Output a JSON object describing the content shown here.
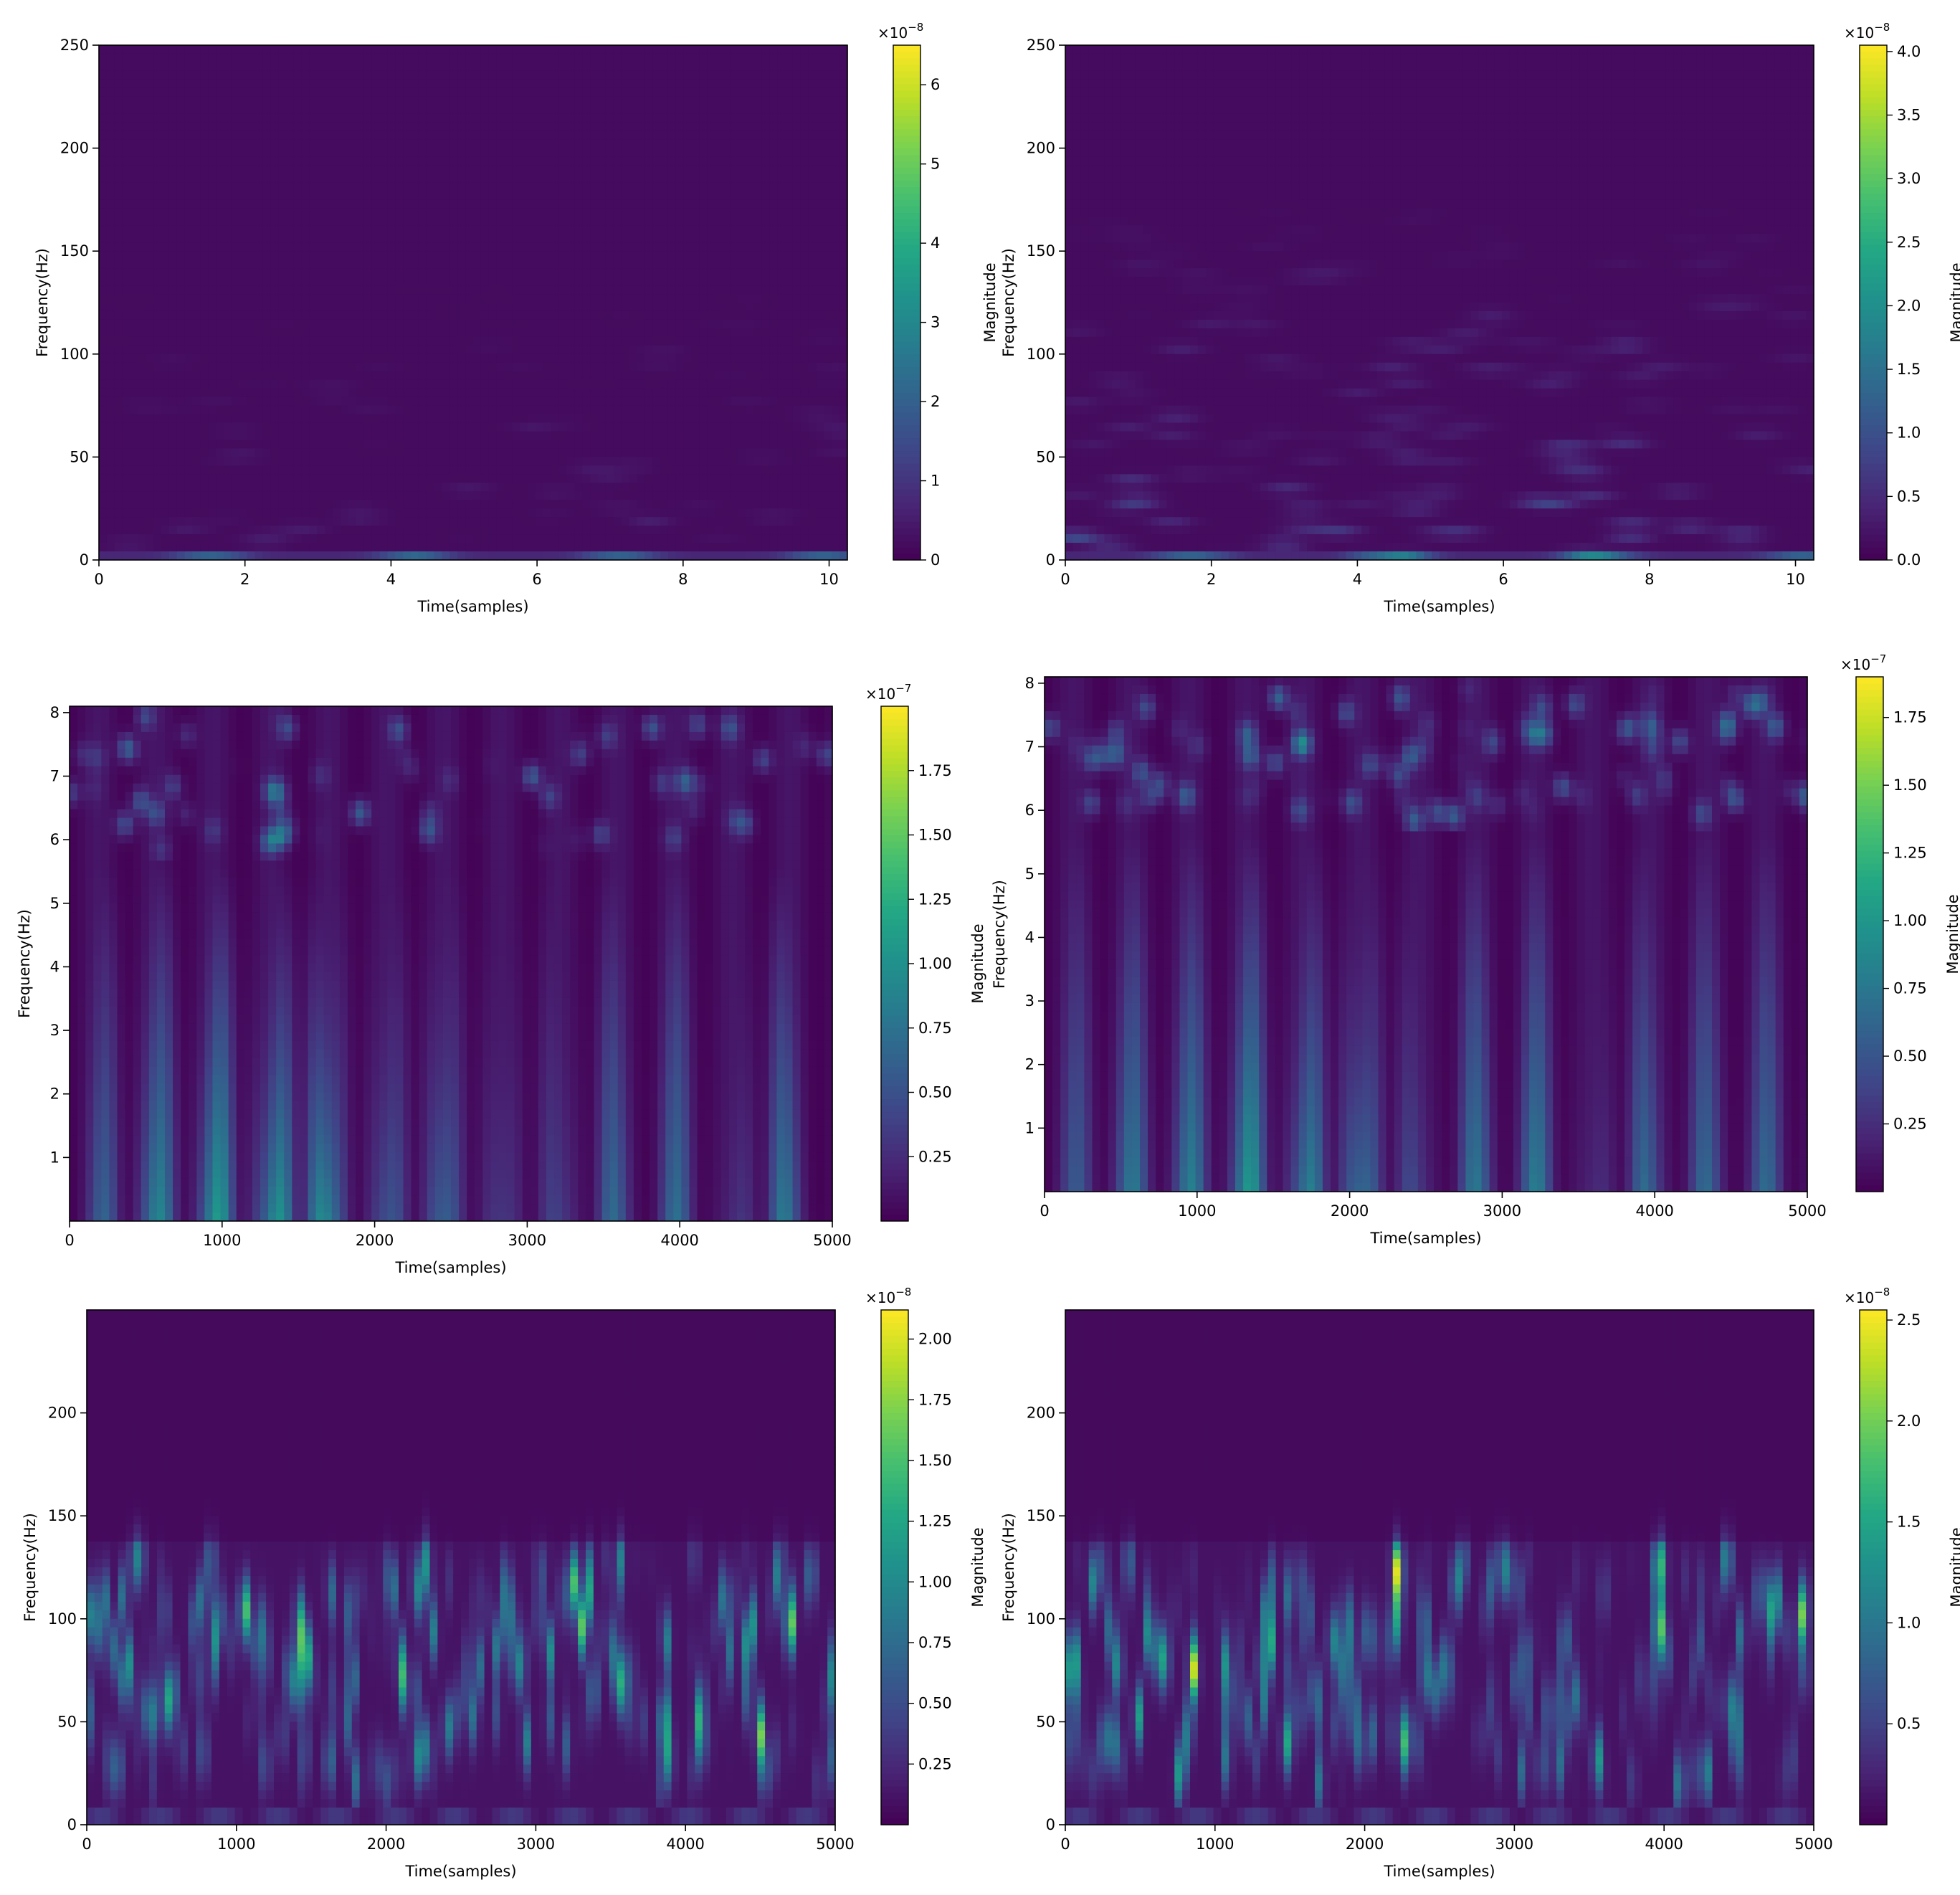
{
  "chart_data": [
    {
      "type": "heatmap",
      "xlabel": "Time(samples)",
      "ylabel": "Frequency(Hz)",
      "xlim": [
        0,
        10.25
      ],
      "ylim": [
        0,
        250
      ],
      "xticks": [
        "0",
        "2",
        "4",
        "6",
        "8",
        "10"
      ],
      "yticks": [
        "0",
        "50",
        "100",
        "150",
        "200",
        "250"
      ],
      "colorbar": {
        "label": "Magnitude",
        "multiplier": "×10",
        "exponent": "−8",
        "ticks": [
          "0",
          "1",
          "2",
          "3",
          "4",
          "5",
          "6"
        ],
        "range": [
          0,
          6.5
        ]
      },
      "colormap": "viridis"
    },
    {
      "type": "heatmap",
      "xlabel": "Time(samples)",
      "ylabel": "Frequency(Hz)",
      "xlim": [
        0,
        10.25
      ],
      "ylim": [
        0,
        250
      ],
      "xticks": [
        "0",
        "2",
        "4",
        "6",
        "8",
        "10"
      ],
      "yticks": [
        "0",
        "50",
        "100",
        "150",
        "200",
        "250"
      ],
      "colorbar": {
        "label": "Magnitude",
        "multiplier": "×10",
        "exponent": "−8",
        "ticks": [
          "0.0",
          "0.5",
          "1.0",
          "1.5",
          "2.0",
          "2.5",
          "3.0",
          "3.5",
          "4.0"
        ],
        "range": [
          0,
          4.05
        ]
      },
      "colormap": "viridis"
    },
    {
      "type": "heatmap",
      "xlabel": "Time(samples)",
      "ylabel": "Frequency(Hz)",
      "xlim": [
        0,
        5000
      ],
      "ylim": [
        0,
        8.1
      ],
      "xticks": [
        "0",
        "1000",
        "2000",
        "3000",
        "4000",
        "5000"
      ],
      "yticks": [
        "1",
        "2",
        "3",
        "4",
        "5",
        "6",
        "7",
        "8"
      ],
      "colorbar": {
        "label": "Magnitude",
        "multiplier": "×10",
        "exponent": "−7",
        "ticks": [
          "0.25",
          "0.50",
          "0.75",
          "1.00",
          "1.25",
          "1.50",
          "1.75"
        ],
        "range": [
          0,
          2.0
        ]
      },
      "colormap": "viridis"
    },
    {
      "type": "heatmap",
      "xlabel": "Time(samples)",
      "ylabel": "Frequency(Hz)",
      "xlim": [
        0,
        5000
      ],
      "ylim": [
        0,
        8.1
      ],
      "xticks": [
        "0",
        "1000",
        "2000",
        "3000",
        "4000",
        "5000"
      ],
      "yticks": [
        "1",
        "2",
        "3",
        "4",
        "5",
        "6",
        "7",
        "8"
      ],
      "colorbar": {
        "label": "Magnitude",
        "multiplier": "×10",
        "exponent": "−7",
        "ticks": [
          "0.25",
          "0.50",
          "0.75",
          "1.00",
          "1.25",
          "1.50",
          "1.75"
        ],
        "range": [
          0,
          1.9
        ]
      },
      "colormap": "viridis"
    },
    {
      "type": "heatmap",
      "xlabel": "Time(samples)",
      "ylabel": "Frequency(Hz)",
      "xlim": [
        0,
        5000
      ],
      "ylim": [
        0,
        250
      ],
      "xticks": [
        "0",
        "1000",
        "2000",
        "3000",
        "4000",
        "5000"
      ],
      "yticks": [
        "0",
        "50",
        "100",
        "150",
        "200"
      ],
      "colorbar": {
        "label": "Magnitude",
        "multiplier": "×10",
        "exponent": "−8",
        "ticks": [
          "0.25",
          "0.50",
          "0.75",
          "1.00",
          "1.25",
          "1.50",
          "1.75",
          "2.00"
        ],
        "range": [
          0,
          2.12
        ]
      },
      "colormap": "viridis"
    },
    {
      "type": "heatmap",
      "xlabel": "Time(samples)",
      "ylabel": "Frequency(Hz)",
      "xlim": [
        0,
        5000
      ],
      "ylim": [
        0,
        250
      ],
      "xticks": [
        "0",
        "1000",
        "2000",
        "3000",
        "4000",
        "5000"
      ],
      "yticks": [
        "0",
        "50",
        "100",
        "150",
        "200"
      ],
      "colorbar": {
        "label": "Magnitude",
        "multiplier": "×10",
        "exponent": "−8",
        "ticks": [
          "0.5",
          "1.0",
          "1.5",
          "2.0",
          "2.5"
        ],
        "range": [
          0,
          2.55
        ]
      },
      "colormap": "viridis"
    }
  ]
}
